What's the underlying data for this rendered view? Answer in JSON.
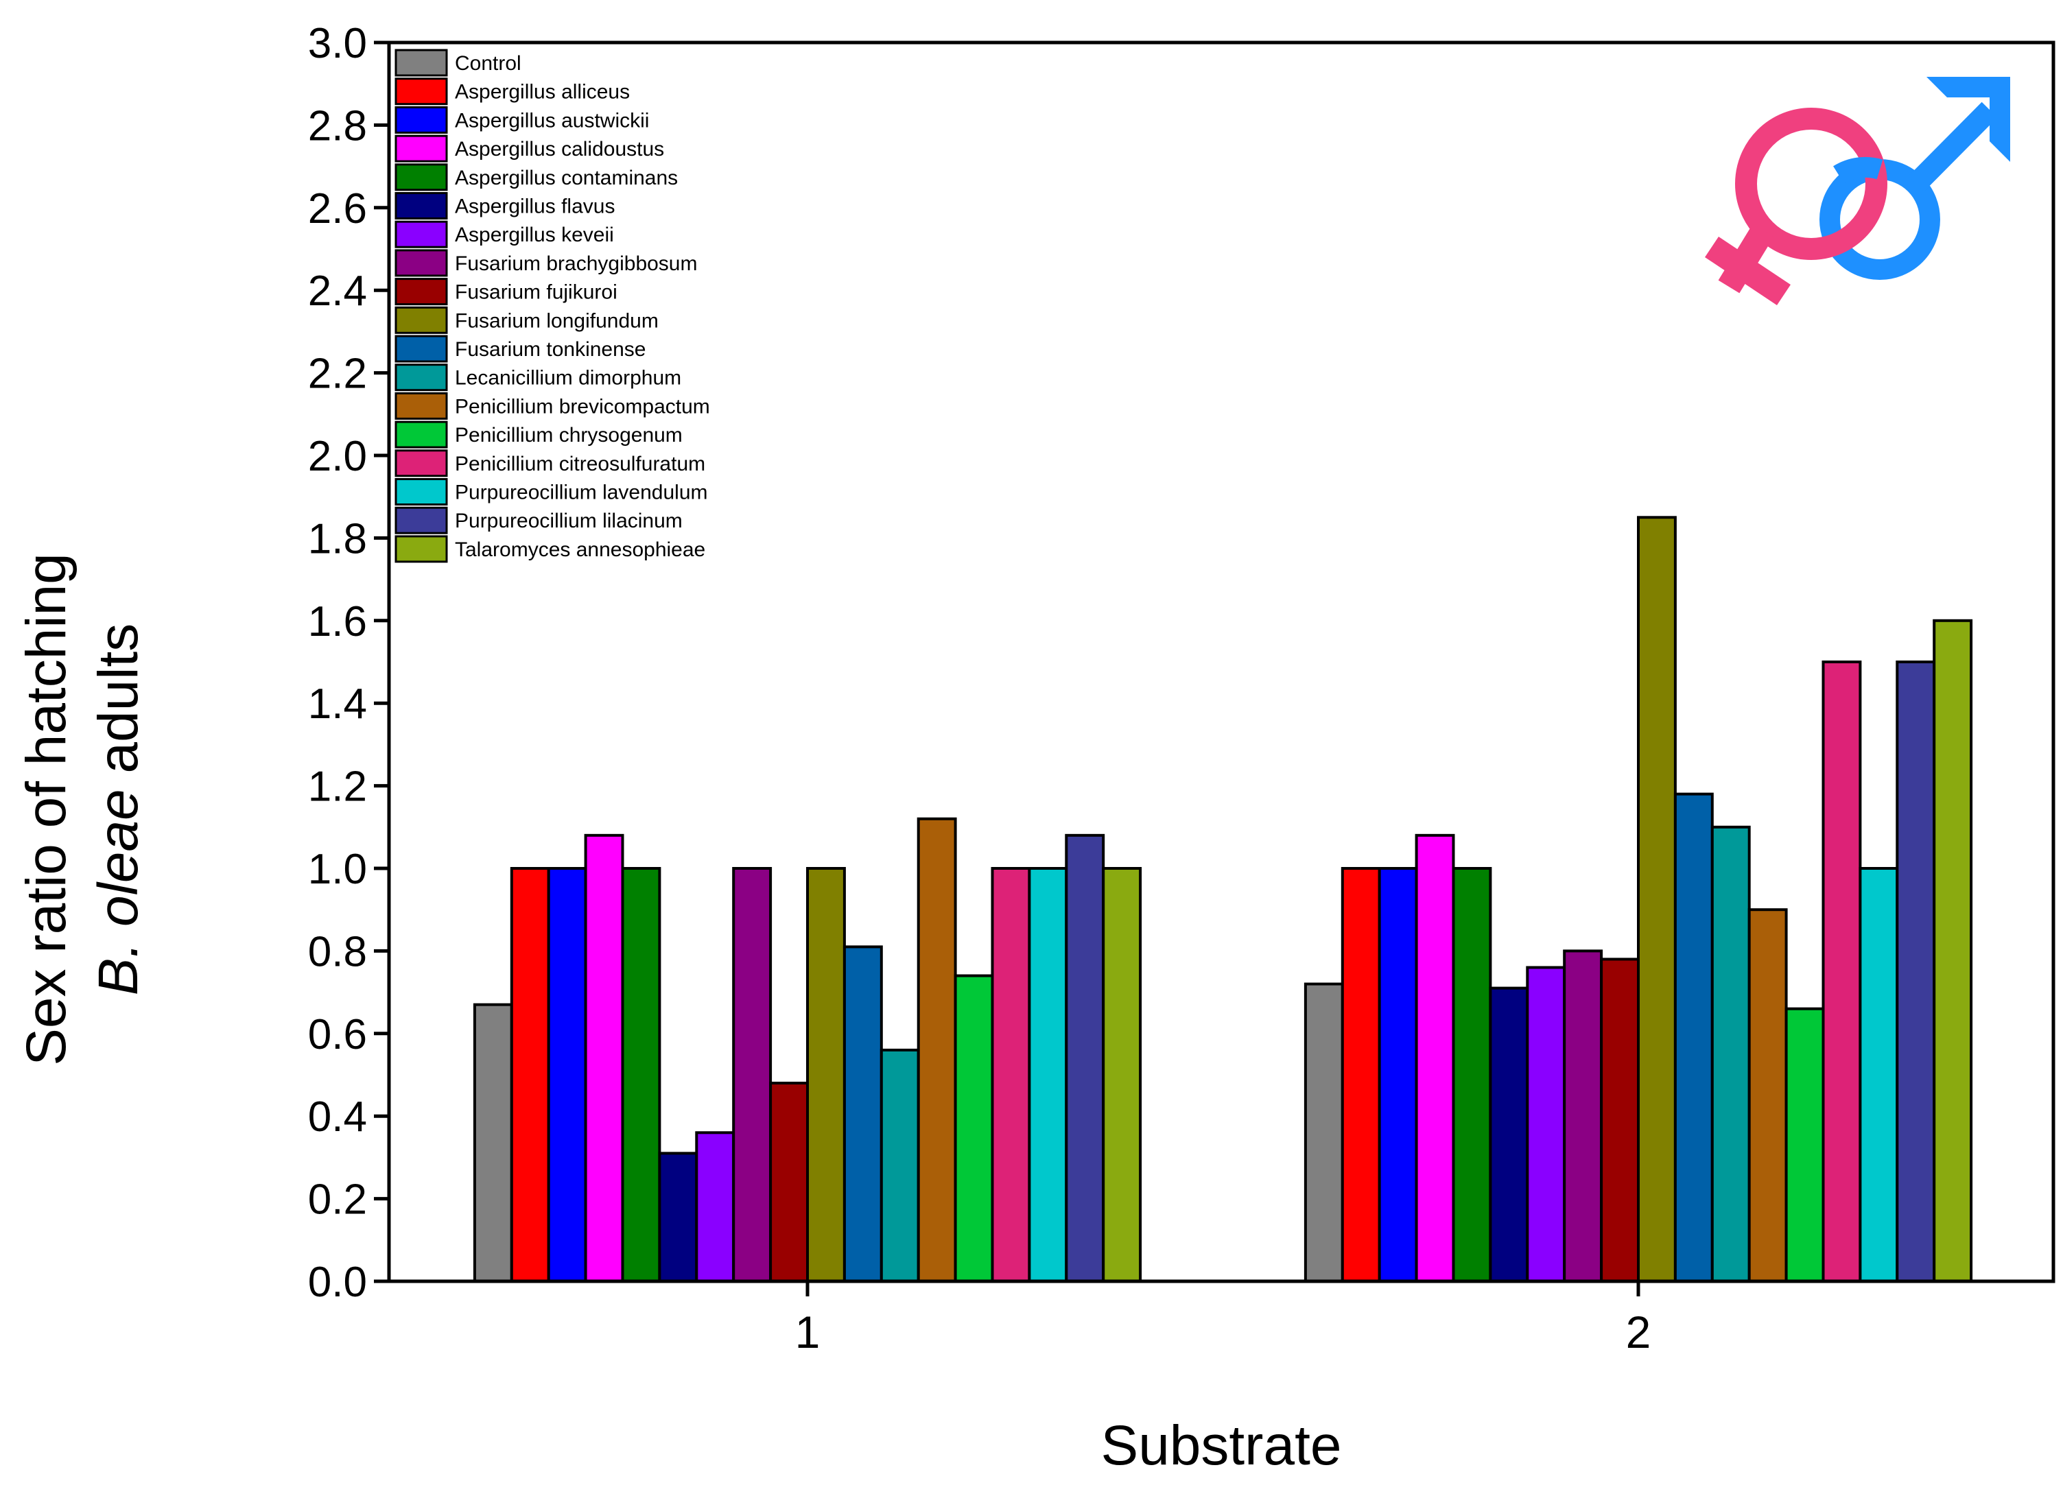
{
  "chart_data": {
    "type": "bar",
    "title": "",
    "xlabel": "Substrate",
    "ylabel_line1": "Sex ratio of hatching",
    "ylabel_line2_italic": "B. oleae",
    "ylabel_line2_rest": " adults",
    "ylim": [
      0,
      3.0
    ],
    "yticks": [
      "0.0",
      "0.2",
      "0.4",
      "0.6",
      "0.8",
      "1.0",
      "1.2",
      "1.4",
      "1.6",
      "1.8",
      "2.0",
      "2.2",
      "2.4",
      "2.6",
      "2.8",
      "3.0"
    ],
    "categories": [
      "1",
      "2"
    ],
    "legend_position": "top-left",
    "decoration": "venus-mars-symbol",
    "series": [
      {
        "name": "Control",
        "color": "#808080",
        "values": [
          0.67,
          0.72
        ]
      },
      {
        "name": "Aspergillus alliceus",
        "color": "#ff0000",
        "values": [
          1.0,
          1.0
        ]
      },
      {
        "name": "Aspergillus austwickii",
        "color": "#0000ff",
        "values": [
          1.0,
          1.0
        ]
      },
      {
        "name": "Aspergillus calidoustus",
        "color": "#ff00ff",
        "values": [
          1.08,
          1.08
        ]
      },
      {
        "name": "Aspergillus contaminans",
        "color": "#008000",
        "values": [
          1.0,
          1.0
        ]
      },
      {
        "name": "Aspergillus flavus",
        "color": "#000080",
        "values": [
          0.31,
          0.71
        ]
      },
      {
        "name": "Aspergillus keveii",
        "color": "#8a00ff",
        "values": [
          0.36,
          0.76
        ]
      },
      {
        "name": "Fusarium brachygibbosum",
        "color": "#8b0084",
        "values": [
          1.0,
          0.8
        ]
      },
      {
        "name": "Fusarium fujikuroi",
        "color": "#990000",
        "values": [
          0.48,
          0.78
        ]
      },
      {
        "name": "Fusarium longifundum",
        "color": "#808000",
        "values": [
          1.0,
          1.85
        ]
      },
      {
        "name": "Fusarium tonkinense",
        "color": "#0060a8",
        "values": [
          0.81,
          1.18
        ]
      },
      {
        "name": "Lecanicillium dimorphum",
        "color": "#009999",
        "values": [
          0.56,
          1.1
        ]
      },
      {
        "name": "Penicillium brevicompactum",
        "color": "#aa5f08",
        "values": [
          1.12,
          0.9
        ]
      },
      {
        "name": "Penicillium chrysogenum",
        "color": "#00c837",
        "values": [
          0.74,
          0.66
        ]
      },
      {
        "name": "Penicillium citreosulfuratum",
        "color": "#dd2277",
        "values": [
          1.0,
          1.5
        ]
      },
      {
        "name": "Purpureocillium lavendulum",
        "color": "#00c8cc",
        "values": [
          1.0,
          1.0
        ]
      },
      {
        "name": "Purpureocillium lilacinum",
        "color": "#3c3c99",
        "values": [
          1.08,
          1.5
        ]
      },
      {
        "name": "Talaromyces annesophieae",
        "color": "#8aaa10",
        "values": [
          1.0,
          1.6
        ]
      }
    ]
  }
}
